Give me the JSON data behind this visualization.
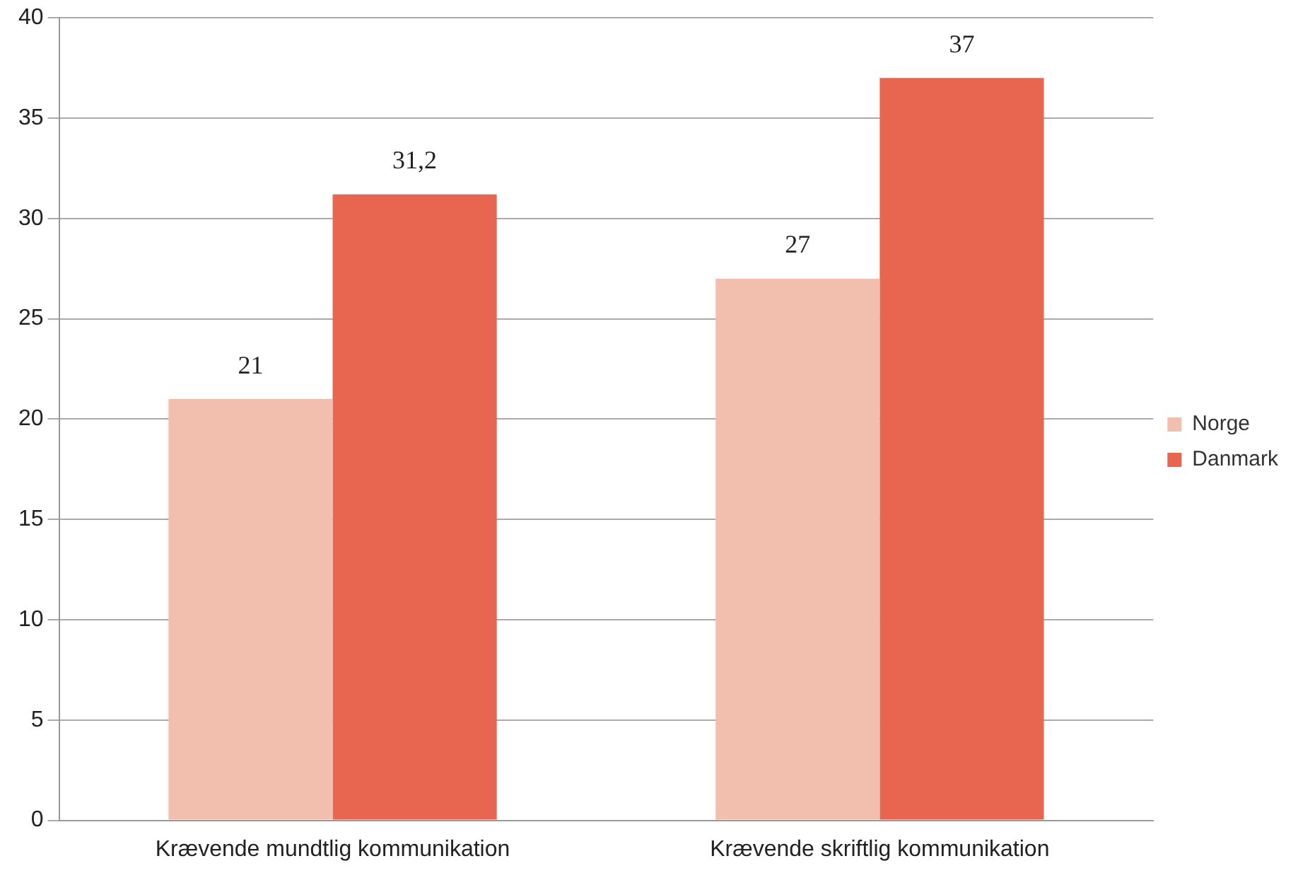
{
  "chart_data": {
    "type": "bar",
    "categories": [
      "Krævende mundtlig kommunikation",
      "Krævende skriftlig kommunikation"
    ],
    "series": [
      {
        "name": "Norge",
        "color": "#f2bfae",
        "values": [
          21,
          27
        ],
        "value_labels": [
          "21",
          "27"
        ]
      },
      {
        "name": "Danmark",
        "color": "#e8664f",
        "values": [
          31.2,
          37
        ],
        "value_labels": [
          "31,2",
          "37"
        ]
      }
    ],
    "ylim": [
      0,
      40
    ],
    "yticks": [
      0,
      5,
      10,
      15,
      20,
      25,
      30,
      35,
      40
    ],
    "grid": "y",
    "legend": "right"
  }
}
